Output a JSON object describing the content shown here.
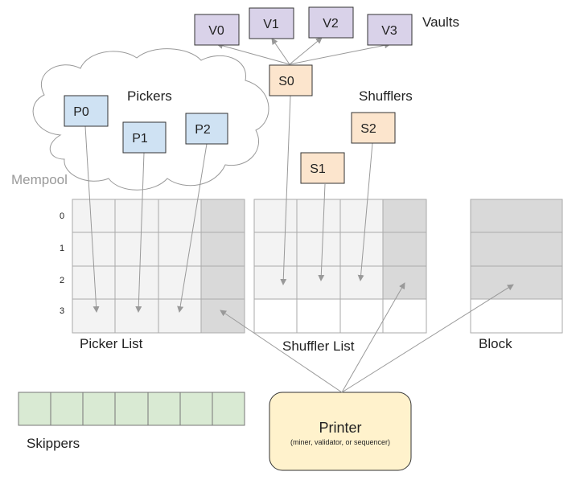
{
  "labels": {
    "vaults": "Vaults",
    "pickers": "Pickers",
    "shufflers": "Shufflers",
    "mempool": "Mempool",
    "picker_list": "Picker List",
    "shuffler_list": "Shuffler List",
    "block": "Block",
    "skippers": "Skippers",
    "printer": "Printer",
    "printer_sub": "(miner, validator, or sequencer)"
  },
  "vaults": [
    "V0",
    "V1",
    "V2",
    "V3"
  ],
  "pickers": [
    "P0",
    "P1",
    "P2"
  ],
  "shufflers": [
    "S0",
    "S1",
    "S2"
  ],
  "rows": [
    "0",
    "1",
    "2",
    "3"
  ],
  "colors": {
    "vault_fill": "#d9d2e9",
    "picker_fill": "#cfe2f3",
    "shuffler_fill": "#fce5cd",
    "printer_fill": "#fff2cc",
    "skipper_fill": "#d9ead3",
    "cell_light": "#f3f3f3",
    "cell_dark": "#d9d9d9",
    "line": "#999999"
  }
}
